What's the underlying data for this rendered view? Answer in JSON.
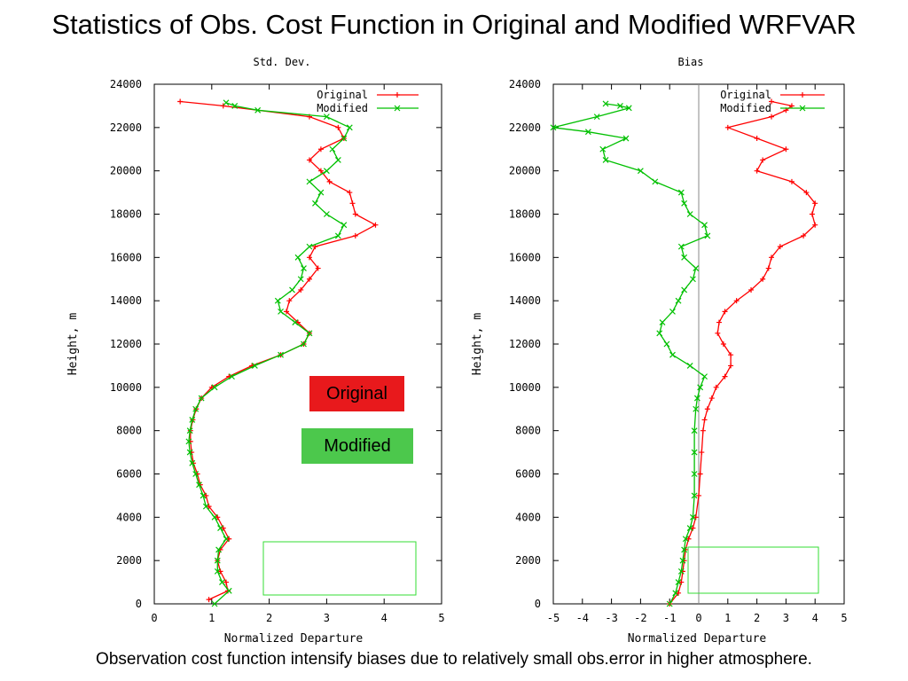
{
  "slide": {
    "title": "Statistics of Obs. Cost Function in Original and Modified WRFVAR",
    "caption": "Observation cost function intensify biases due to relatively small obs.error in higher atmosphere.",
    "badge_original": "Original",
    "badge_modified": "Modified",
    "colors": {
      "original": "#ff0000",
      "modified": "#00c000",
      "badge_original": "#e8191c",
      "badge_modified": "#4cc84c"
    }
  },
  "chart_data": [
    {
      "type": "line",
      "title": "Std. Dev.",
      "xlabel": "Normalized Departure",
      "ylabel": "Height, m",
      "xlim": [
        0,
        5
      ],
      "ylim": [
        0,
        24000
      ],
      "xticks": [
        0,
        1,
        2,
        3,
        4,
        5
      ],
      "xtick_labels": [
        "0",
        "1",
        "2",
        "3",
        "4",
        "5"
      ],
      "yticks": [
        0,
        2000,
        4000,
        6000,
        8000,
        10000,
        12000,
        14000,
        16000,
        18000,
        20000,
        22000,
        24000
      ],
      "ytick_labels": [
        "0",
        "2000",
        "4000",
        "6000",
        "8000",
        "10000",
        "12000",
        "14000",
        "16000",
        "18000",
        "20000",
        "22000",
        "24000"
      ],
      "legend": [
        "Original",
        "Modified"
      ],
      "vline": null,
      "series": [
        {
          "name": "Original",
          "points": [
            [
              0.95,
              200
            ],
            [
              1.28,
              600
            ],
            [
              1.25,
              1000
            ],
            [
              1.15,
              1500
            ],
            [
              1.1,
              2000
            ],
            [
              1.15,
              2500
            ],
            [
              1.3,
              3000
            ],
            [
              1.2,
              3500
            ],
            [
              1.1,
              4000
            ],
            [
              0.95,
              4500
            ],
            [
              0.9,
              5000
            ],
            [
              0.8,
              5500
            ],
            [
              0.75,
              6000
            ],
            [
              0.68,
              6500
            ],
            [
              0.65,
              7000
            ],
            [
              0.63,
              7500
            ],
            [
              0.63,
              8000
            ],
            [
              0.67,
              8500
            ],
            [
              0.73,
              9000
            ],
            [
              0.82,
              9500
            ],
            [
              1.0,
              10000
            ],
            [
              1.3,
              10500
            ],
            [
              1.7,
              11000
            ],
            [
              2.2,
              11500
            ],
            [
              2.6,
              12000
            ],
            [
              2.7,
              12500
            ],
            [
              2.5,
              13000
            ],
            [
              2.3,
              13500
            ],
            [
              2.35,
              14000
            ],
            [
              2.55,
              14500
            ],
            [
              2.7,
              15000
            ],
            [
              2.85,
              15500
            ],
            [
              2.7,
              16000
            ],
            [
              2.8,
              16500
            ],
            [
              3.5,
              17000
            ],
            [
              3.85,
              17500
            ],
            [
              3.5,
              18000
            ],
            [
              3.45,
              18500
            ],
            [
              3.4,
              19000
            ],
            [
              3.05,
              19500
            ],
            [
              2.9,
              20000
            ],
            [
              2.7,
              20500
            ],
            [
              2.9,
              21000
            ],
            [
              3.3,
              21500
            ],
            [
              3.2,
              22000
            ],
            [
              2.7,
              22500
            ],
            [
              1.2,
              23000
            ],
            [
              0.45,
              23200
            ]
          ]
        },
        {
          "name": "Modified",
          "points": [
            [
              1.05,
              0
            ],
            [
              1.3,
              600
            ],
            [
              1.18,
              1000
            ],
            [
              1.1,
              1500
            ],
            [
              1.1,
              2000
            ],
            [
              1.12,
              2500
            ],
            [
              1.25,
              3000
            ],
            [
              1.15,
              3500
            ],
            [
              1.05,
              4000
            ],
            [
              0.9,
              4500
            ],
            [
              0.85,
              5000
            ],
            [
              0.78,
              5500
            ],
            [
              0.72,
              6000
            ],
            [
              0.66,
              6500
            ],
            [
              0.62,
              7000
            ],
            [
              0.6,
              7500
            ],
            [
              0.62,
              8000
            ],
            [
              0.66,
              8500
            ],
            [
              0.72,
              9000
            ],
            [
              0.82,
              9500
            ],
            [
              1.05,
              10000
            ],
            [
              1.35,
              10500
            ],
            [
              1.75,
              11000
            ],
            [
              2.2,
              11500
            ],
            [
              2.6,
              12000
            ],
            [
              2.7,
              12500
            ],
            [
              2.45,
              13000
            ],
            [
              2.2,
              13500
            ],
            [
              2.15,
              14000
            ],
            [
              2.4,
              14500
            ],
            [
              2.55,
              15000
            ],
            [
              2.6,
              15500
            ],
            [
              2.5,
              16000
            ],
            [
              2.7,
              16500
            ],
            [
              3.2,
              17000
            ],
            [
              3.3,
              17500
            ],
            [
              3.0,
              18000
            ],
            [
              2.8,
              18500
            ],
            [
              2.9,
              19000
            ],
            [
              2.7,
              19500
            ],
            [
              3.0,
              20000
            ],
            [
              3.2,
              20500
            ],
            [
              3.1,
              21000
            ],
            [
              3.3,
              21500
            ],
            [
              3.4,
              22000
            ],
            [
              3.0,
              22500
            ],
            [
              1.8,
              22800
            ],
            [
              1.4,
              23000
            ],
            [
              1.25,
              23150
            ]
          ]
        }
      ]
    },
    {
      "type": "line",
      "title": "Bias",
      "xlabel": "Normalized Departure",
      "ylabel": "Height, m",
      "xlim": [
        -5,
        5
      ],
      "ylim": [
        0,
        24000
      ],
      "xticks": [
        -5,
        -4,
        -3,
        -2,
        -1,
        0,
        1,
        2,
        3,
        4,
        5
      ],
      "xtick_labels": [
        "-5",
        "-4",
        "-3",
        "-2",
        "-1",
        "0",
        "1",
        "2",
        "3",
        "4",
        "5"
      ],
      "yticks": [
        0,
        2000,
        4000,
        6000,
        8000,
        10000,
        12000,
        14000,
        16000,
        18000,
        20000,
        22000,
        24000
      ],
      "ytick_labels": [
        "0",
        "2000",
        "4000",
        "6000",
        "8000",
        "10000",
        "12000",
        "14000",
        "16000",
        "18000",
        "20000",
        "22000",
        "24000"
      ],
      "legend": [
        "Original",
        "Modified"
      ],
      "vline": 0,
      "series": [
        {
          "name": "Original",
          "points": [
            [
              -1.0,
              0
            ],
            [
              -0.7,
              500
            ],
            [
              -0.6,
              1000
            ],
            [
              -0.55,
              1500
            ],
            [
              -0.5,
              2000
            ],
            [
              -0.45,
              2500
            ],
            [
              -0.35,
              3000
            ],
            [
              -0.2,
              3500
            ],
            [
              -0.1,
              4000
            ],
            [
              0.0,
              5000
            ],
            [
              0.05,
              6000
            ],
            [
              0.1,
              7000
            ],
            [
              0.15,
              8000
            ],
            [
              0.2,
              8500
            ],
            [
              0.3,
              9000
            ],
            [
              0.45,
              9500
            ],
            [
              0.6,
              10000
            ],
            [
              0.9,
              10500
            ],
            [
              1.1,
              11000
            ],
            [
              1.1,
              11500
            ],
            [
              0.85,
              12000
            ],
            [
              0.65,
              12500
            ],
            [
              0.7,
              13000
            ],
            [
              0.9,
              13500
            ],
            [
              1.3,
              14000
            ],
            [
              1.8,
              14500
            ],
            [
              2.2,
              15000
            ],
            [
              2.4,
              15500
            ],
            [
              2.5,
              16000
            ],
            [
              2.8,
              16500
            ],
            [
              3.6,
              17000
            ],
            [
              4.0,
              17500
            ],
            [
              3.9,
              18000
            ],
            [
              4.0,
              18500
            ],
            [
              3.7,
              19000
            ],
            [
              3.2,
              19500
            ],
            [
              2.0,
              20000
            ],
            [
              2.2,
              20500
            ],
            [
              3.0,
              21000
            ],
            [
              2.0,
              21500
            ],
            [
              1.0,
              22000
            ],
            [
              2.5,
              22500
            ],
            [
              3.0,
              22800
            ],
            [
              3.2,
              23000
            ],
            [
              2.5,
              23200
            ]
          ]
        },
        {
          "name": "Modified",
          "points": [
            [
              -1.0,
              0
            ],
            [
              -0.8,
              500
            ],
            [
              -0.7,
              1000
            ],
            [
              -0.6,
              1500
            ],
            [
              -0.55,
              2000
            ],
            [
              -0.5,
              2500
            ],
            [
              -0.45,
              3000
            ],
            [
              -0.3,
              3500
            ],
            [
              -0.2,
              4000
            ],
            [
              -0.15,
              5000
            ],
            [
              -0.15,
              6000
            ],
            [
              -0.15,
              7000
            ],
            [
              -0.15,
              8000
            ],
            [
              -0.1,
              9000
            ],
            [
              -0.05,
              9500
            ],
            [
              0.05,
              10000
            ],
            [
              0.2,
              10500
            ],
            [
              -0.3,
              11000
            ],
            [
              -0.9,
              11500
            ],
            [
              -1.1,
              12000
            ],
            [
              -1.35,
              12500
            ],
            [
              -1.25,
              13000
            ],
            [
              -0.9,
              13500
            ],
            [
              -0.7,
              14000
            ],
            [
              -0.5,
              14500
            ],
            [
              -0.2,
              15000
            ],
            [
              -0.1,
              15500
            ],
            [
              -0.5,
              16000
            ],
            [
              -0.6,
              16500
            ],
            [
              0.3,
              17000
            ],
            [
              0.2,
              17500
            ],
            [
              -0.3,
              18000
            ],
            [
              -0.5,
              18500
            ],
            [
              -0.6,
              19000
            ],
            [
              -1.5,
              19500
            ],
            [
              -2.0,
              20000
            ],
            [
              -3.2,
              20500
            ],
            [
              -3.3,
              21000
            ],
            [
              -2.5,
              21500
            ],
            [
              -3.8,
              21800
            ],
            [
              -5.0,
              22000
            ],
            [
              -3.5,
              22500
            ],
            [
              -2.4,
              22900
            ],
            [
              -2.7,
              23000
            ],
            [
              -3.2,
              23100
            ]
          ]
        }
      ]
    }
  ]
}
